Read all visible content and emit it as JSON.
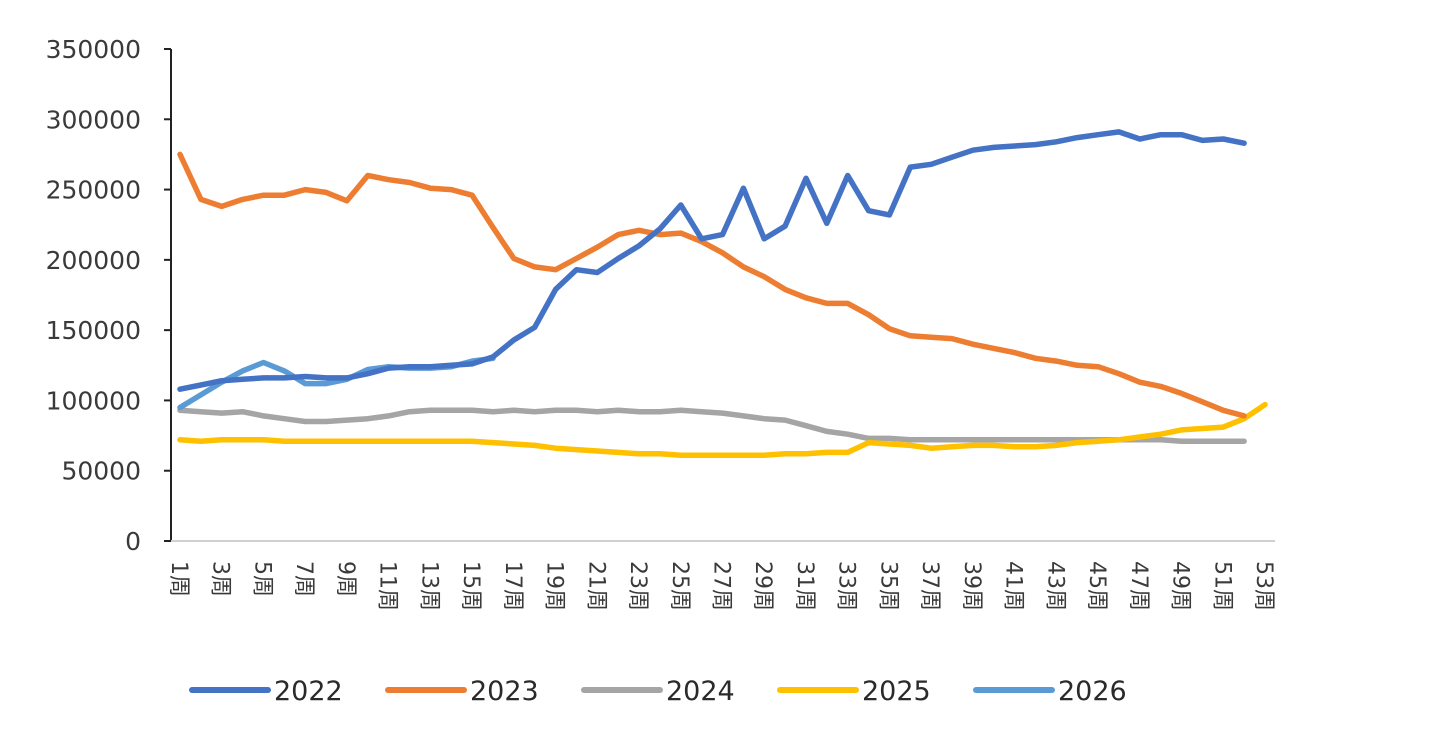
{
  "chart_data": {
    "type": "line",
    "title": "",
    "xlabel": "",
    "ylabel": "",
    "ylim": [
      0,
      350000
    ],
    "yticks": [
      "0",
      "50000",
      "100000",
      "150000",
      "200000",
      "250000",
      "300000",
      "350000"
    ],
    "ytick_values": [
      0,
      50000,
      100000,
      150000,
      200000,
      250000,
      300000,
      350000
    ],
    "xtick_labels": [
      "1周",
      "3周",
      "5周",
      "7周",
      "9周",
      "11周",
      "13周",
      "15周",
      "17周",
      "19周",
      "21周",
      "23周",
      "25周",
      "27周",
      "29周",
      "31周",
      "33周",
      "35周",
      "37周",
      "39周",
      "41周",
      "43周",
      "45周",
      "47周",
      "49周",
      "51周",
      "53周"
    ],
    "x_weeks_total": 53,
    "grid": false,
    "legend_position": "bottom",
    "series": [
      {
        "name": "2022",
        "color": "#4472C4",
        "values": [
          108000,
          111000,
          114000,
          115000,
          116000,
          116000,
          117000,
          116000,
          116000,
          119000,
          123000,
          124000,
          124000,
          125000,
          126000,
          131000,
          143000,
          152000,
          179000,
          193000,
          191000,
          201000,
          210000,
          222000,
          239000,
          215000,
          218000,
          251000,
          215000,
          224000,
          258000,
          226000,
          260000,
          235000,
          232000,
          266000,
          268000,
          273000,
          278000,
          280000,
          281000,
          282000,
          284000,
          287000,
          289000,
          291000,
          286000,
          289000,
          289000,
          285000,
          286000,
          283000,
          null
        ]
      },
      {
        "name": "2023",
        "color": "#ED7D31",
        "values": [
          275000,
          243000,
          238000,
          243000,
          246000,
          246000,
          250000,
          248000,
          242000,
          260000,
          257000,
          255000,
          251000,
          250000,
          246000,
          223000,
          201000,
          195000,
          193000,
          201000,
          209000,
          218000,
          221000,
          218000,
          219000,
          213000,
          205000,
          195000,
          188000,
          179000,
          173000,
          169000,
          169000,
          161000,
          151000,
          146000,
          145000,
          144000,
          140000,
          137000,
          134000,
          130000,
          128000,
          125000,
          124000,
          119000,
          113000,
          110000,
          105000,
          99000,
          93000,
          89000,
          null
        ]
      },
      {
        "name": "2024",
        "color": "#A5A5A5",
        "values": [
          93000,
          92000,
          91000,
          92000,
          89000,
          87000,
          85000,
          85000,
          86000,
          87000,
          89000,
          92000,
          93000,
          93000,
          93000,
          92000,
          93000,
          92000,
          93000,
          93000,
          92000,
          93000,
          92000,
          92000,
          93000,
          92000,
          91000,
          89000,
          87000,
          86000,
          82000,
          78000,
          76000,
          73000,
          73000,
          72000,
          72000,
          72000,
          72000,
          72000,
          72000,
          72000,
          72000,
          72000,
          72000,
          72000,
          72000,
          72000,
          71000,
          71000,
          71000,
          71000,
          null
        ]
      },
      {
        "name": "2025",
        "color": "#FFC000",
        "values": [
          72000,
          71000,
          72000,
          72000,
          72000,
          71000,
          71000,
          71000,
          71000,
          71000,
          71000,
          71000,
          71000,
          71000,
          71000,
          70000,
          69000,
          68000,
          66000,
          65000,
          64000,
          63000,
          62000,
          62000,
          61000,
          61000,
          61000,
          61000,
          61000,
          62000,
          62000,
          63000,
          63000,
          70000,
          69000,
          68000,
          66000,
          67000,
          68000,
          68000,
          67000,
          67000,
          68000,
          70000,
          71000,
          72000,
          74000,
          76000,
          79000,
          80000,
          81000,
          87000,
          97000
        ]
      },
      {
        "name": "2026",
        "color": "#5B9BD5",
        "values": [
          95000,
          104000,
          113000,
          121000,
          127000,
          121000,
          112000,
          112000,
          115000,
          122000,
          124000,
          123000,
          123000,
          124000,
          128000,
          130000,
          null,
          null,
          null,
          null,
          null,
          null,
          null,
          null,
          null,
          null,
          null,
          null,
          null,
          null,
          null,
          null,
          null,
          null,
          null,
          null,
          null,
          null,
          null,
          null,
          null,
          null,
          null,
          null,
          null,
          null,
          null,
          null,
          null,
          null,
          null,
          null,
          null
        ]
      }
    ]
  }
}
